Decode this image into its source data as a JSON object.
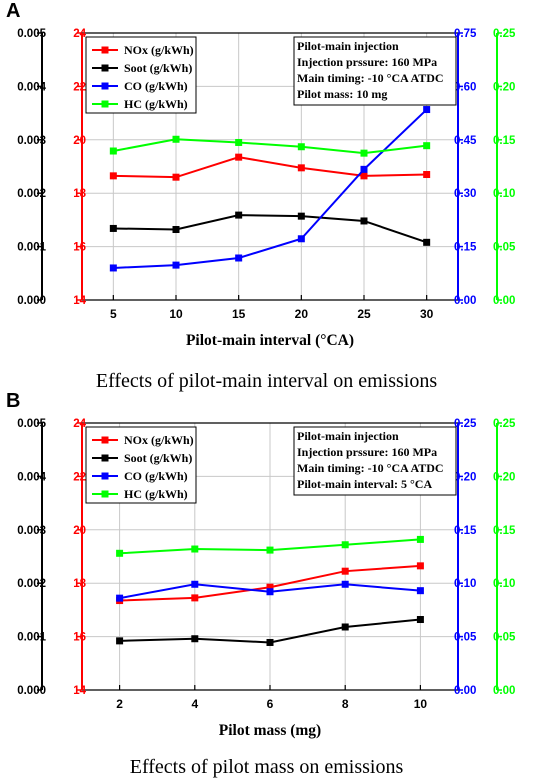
{
  "panels": [
    {
      "letter": "A",
      "caption": "Effects of pilot-main interval on emissions"
    },
    {
      "letter": "B",
      "caption": "Effects of pilot mass on emissions"
    }
  ],
  "chart_data": [
    {
      "type": "line",
      "xlabel": "Pilot-main interval (°CA)",
      "x": [
        5,
        10,
        15,
        20,
        25,
        30
      ],
      "xticks": [
        "5",
        "10",
        "15",
        "20",
        "25",
        "30"
      ],
      "xlim": [
        2.5,
        32.5
      ],
      "grid": true,
      "legend_position": "top-left",
      "info_lines": [
        "Pilot-main injection",
        "Injection prssure: 160 MPa",
        "Main timing: -10 °CA ATDC",
        "Pilot mass: 10 mg"
      ],
      "axes": {
        "soot": {
          "ylim": [
            0,
            0.005
          ],
          "ticks": [
            "0.000",
            "0.001",
            "0.002",
            "0.003",
            "0.004",
            "0.005"
          ],
          "color": "#000000",
          "position": "outer-left"
        },
        "nox": {
          "ylim": [
            14,
            24
          ],
          "ticks": [
            "14",
            "16",
            "18",
            "20",
            "22",
            "24"
          ],
          "color": "#ff0000",
          "position": "left"
        },
        "co": {
          "ylim": [
            0,
            0.75
          ],
          "ticks": [
            "0.00",
            "0.15",
            "0.30",
            "0.45",
            "0.60",
            "0.75"
          ],
          "color": "#0000ff",
          "position": "right"
        },
        "hc": {
          "ylim": [
            0,
            0.25
          ],
          "ticks": [
            "0.00",
            "0.05",
            "0.10",
            "0.15",
            "0.20",
            "0.25"
          ],
          "color": "#00ff00",
          "position": "outer-right"
        }
      },
      "series": [
        {
          "name": "NOx (g/kWh)",
          "axis": "nox",
          "color": "#ff0000",
          "values": [
            18.65,
            18.6,
            19.35,
            18.95,
            18.65,
            18.7
          ]
        },
        {
          "name": "Soot (g/kWh)",
          "axis": "soot",
          "color": "#000000",
          "values": [
            0.00134,
            0.00132,
            0.00159,
            0.00157,
            0.00148,
            0.00108
          ]
        },
        {
          "name": "CO (g/kWh)",
          "axis": "co",
          "color": "#0000ff",
          "values": [
            0.09,
            0.098,
            0.118,
            0.172,
            0.367,
            0.535
          ]
        },
        {
          "name": "HC (g/kWh)",
          "axis": "hc",
          "color": "#00ff00",
          "values": [
            0.1395,
            0.1505,
            0.1475,
            0.1435,
            0.1375,
            0.1445
          ]
        }
      ]
    },
    {
      "type": "line",
      "xlabel": "Pilot mass (mg)",
      "x": [
        2,
        4,
        6,
        8,
        10
      ],
      "xticks": [
        "2",
        "4",
        "6",
        "8",
        "10"
      ],
      "xlim": [
        1,
        11
      ],
      "grid": true,
      "legend_position": "top-left",
      "info_lines": [
        "Pilot-main injection",
        "Injection prssure: 160 MPa",
        "Main timing: -10 °CA ATDC",
        "Pilot-main interval: 5 °CA"
      ],
      "axes": {
        "soot": {
          "ylim": [
            0,
            0.005
          ],
          "ticks": [
            "0.000",
            "0.001",
            "0.002",
            "0.003",
            "0.004",
            "0.005"
          ],
          "color": "#000000",
          "position": "outer-left"
        },
        "nox": {
          "ylim": [
            14,
            24
          ],
          "ticks": [
            "14",
            "16",
            "18",
            "20",
            "22",
            "24"
          ],
          "color": "#ff0000",
          "position": "left"
        },
        "co": {
          "ylim": [
            0,
            0.25
          ],
          "ticks": [
            "0.00",
            "0.05",
            "0.10",
            "0.15",
            "0.20",
            "0.25"
          ],
          "color": "#0000ff",
          "position": "right"
        },
        "hc": {
          "ylim": [
            0,
            0.25
          ],
          "ticks": [
            "0.00",
            "0.05",
            "0.10",
            "0.15",
            "0.20",
            "0.25"
          ],
          "color": "#00ff00",
          "position": "outer-right"
        }
      },
      "series": [
        {
          "name": "NOx (g/kWh)",
          "axis": "nox",
          "color": "#ff0000",
          "values": [
            17.35,
            17.45,
            17.85,
            18.45,
            18.65
          ]
        },
        {
          "name": "Soot (g/kWh)",
          "axis": "soot",
          "color": "#000000",
          "values": [
            0.00092,
            0.00096,
            0.00089,
            0.00118,
            0.00132
          ]
        },
        {
          "name": "CO (g/kWh)",
          "axis": "co",
          "color": "#0000ff",
          "values": [
            0.086,
            0.099,
            0.092,
            0.099,
            0.093
          ]
        },
        {
          "name": "HC (g/kWh)",
          "axis": "hc",
          "color": "#00ff00",
          "values": [
            0.128,
            0.132,
            0.131,
            0.136,
            0.141
          ]
        }
      ]
    }
  ]
}
